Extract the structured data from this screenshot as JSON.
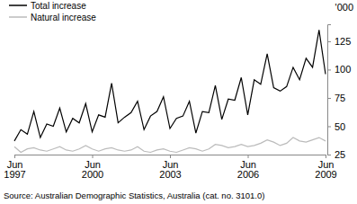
{
  "chart_data": {
    "type": "line",
    "y_label": "'000",
    "source": "Source: Australian Demographic Statistics, Australia (cat. no. 3101.0)",
    "categories": [
      "Jun 1997",
      null,
      null,
      null,
      null,
      null,
      null,
      null,
      null,
      null,
      null,
      null,
      "Jun 2000",
      null,
      null,
      null,
      null,
      null,
      null,
      null,
      null,
      null,
      null,
      null,
      "Jun 2003",
      null,
      null,
      null,
      null,
      null,
      null,
      null,
      null,
      null,
      null,
      null,
      "Jun 2006",
      null,
      null,
      null,
      null,
      null,
      null,
      null,
      null,
      null,
      null,
      null,
      "Jun 2009"
    ],
    "series": [
      {
        "name": "Total increase",
        "color": "#000000",
        "values": [
          37,
          47,
          43,
          63,
          40,
          52,
          50,
          66,
          45,
          57,
          53,
          70,
          45,
          60,
          58,
          88,
          53,
          58,
          62,
          72,
          47,
          59,
          63,
          76,
          48,
          57,
          59,
          72,
          44,
          63,
          62,
          86,
          56,
          74,
          73,
          93,
          60,
          91,
          87,
          114,
          84,
          81,
          85,
          102,
          91,
          110,
          102,
          135,
          96
        ]
      },
      {
        "name": "Natural increase",
        "color": "#bbbbbb",
        "values": [
          32,
          27,
          30,
          31,
          29,
          28,
          30,
          32,
          29,
          28,
          30,
          33,
          30,
          28,
          30,
          31,
          29,
          28,
          29,
          32,
          28,
          27,
          29,
          30,
          28,
          27,
          29,
          31,
          30,
          28,
          30,
          34,
          33,
          31,
          32,
          34,
          32,
          33,
          35,
          38,
          36,
          33,
          35,
          40,
          37,
          36,
          38,
          40,
          37
        ]
      }
    ],
    "ylim": [
      25,
      140
    ],
    "yticks": [
      25,
      50,
      75,
      100,
      125
    ],
    "grid": false,
    "legend": "top-left"
  }
}
